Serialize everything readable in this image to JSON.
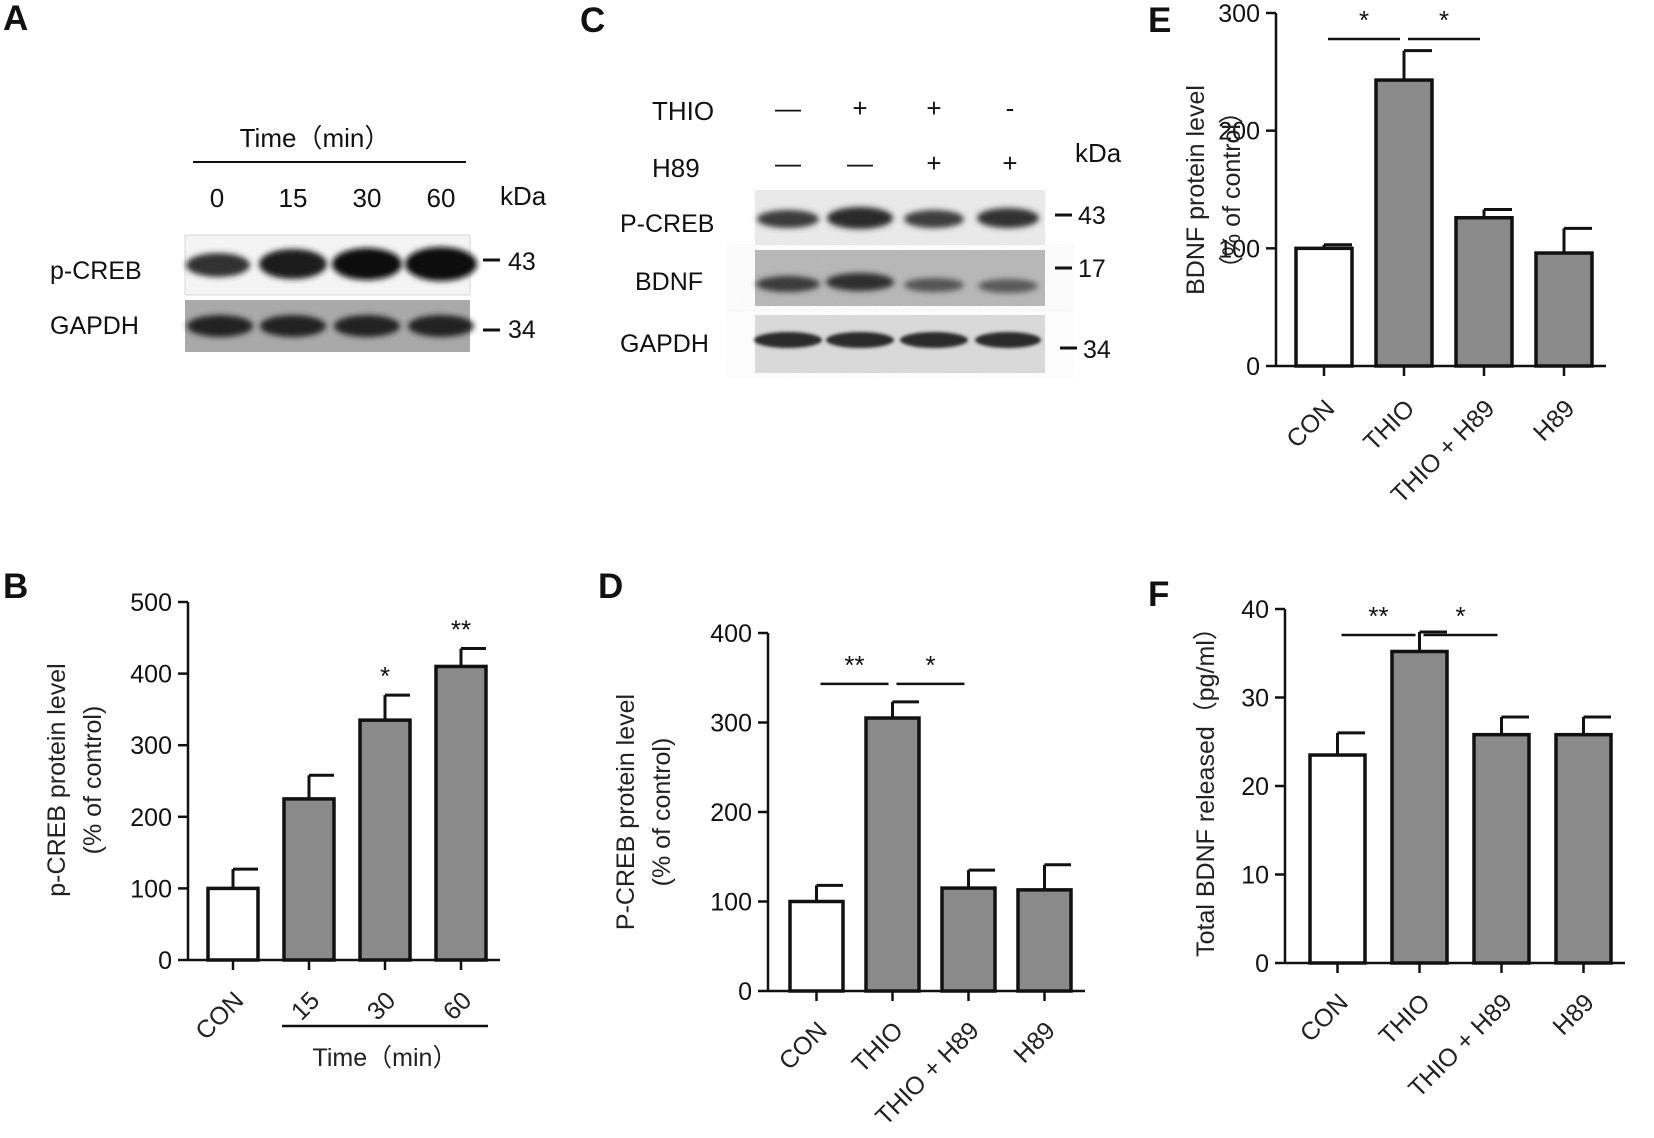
{
  "panels": {
    "A": {
      "letter": "A",
      "time_label": "Time（min）",
      "kda_label": "kDa",
      "columns": [
        "0",
        "15",
        "30",
        "60"
      ],
      "rows": [
        {
          "label": "p-CREB",
          "marker": "43"
        },
        {
          "label": "GAPDH",
          "marker": "34"
        }
      ]
    },
    "C": {
      "letter": "C",
      "kda_label": "kDa",
      "treatments": [
        {
          "label": "THIO",
          "signs": [
            "—",
            "+",
            "+",
            "-"
          ]
        },
        {
          "label": "H89",
          "signs": [
            "—",
            "—",
            "+",
            "+"
          ]
        }
      ],
      "rows": [
        {
          "label": "P-CREB",
          "marker": "43"
        },
        {
          "label": "BDNF",
          "marker": "17"
        },
        {
          "label": "GAPDH",
          "marker": "34"
        }
      ]
    }
  },
  "chart_data": [
    {
      "panel": "B",
      "type": "bar",
      "categories": [
        "CON",
        "15",
        "30",
        "60"
      ],
      "values": [
        100,
        225,
        335,
        410
      ],
      "errors": [
        27,
        33,
        35,
        25
      ],
      "significance": [
        "",
        "",
        "*",
        "**"
      ],
      "bar_colors": [
        "#ffffff",
        "#8a8a8a",
        "#8a8a8a",
        "#8a8a8a"
      ],
      "ylabel_lines": [
        "p-CREB protein level",
        "(% of control)"
      ],
      "xgroup_label": "Time（min）",
      "yticks": [
        0,
        100,
        200,
        300,
        400,
        500
      ],
      "ylim": [
        0,
        500
      ]
    },
    {
      "panel": "D",
      "type": "bar",
      "categories": [
        "CON",
        "THIO",
        "THIO + H89",
        "H89"
      ],
      "values": [
        100,
        305,
        115,
        113
      ],
      "errors": [
        18,
        18,
        20,
        28
      ],
      "bar_colors": [
        "#ffffff",
        "#8a8a8a",
        "#8a8a8a",
        "#8a8a8a"
      ],
      "ylabel_lines": [
        "P-CREB protein level",
        "(% of control)"
      ],
      "yticks": [
        0,
        100,
        200,
        300,
        400
      ],
      "ylim": [
        0,
        400
      ],
      "brackets": [
        {
          "from": 0,
          "to": 1,
          "label": "**"
        },
        {
          "from": 1,
          "to": 2,
          "label": "*"
        }
      ]
    },
    {
      "panel": "E",
      "type": "bar",
      "categories": [
        "CON",
        "THIO",
        "THIO + H89",
        "H89"
      ],
      "values": [
        100,
        243,
        126,
        96
      ],
      "errors": [
        3,
        25,
        7,
        21
      ],
      "bar_colors": [
        "#ffffff",
        "#8a8a8a",
        "#8a8a8a",
        "#8a8a8a"
      ],
      "ylabel_lines": [
        "BDNF protein level",
        "（% of control）"
      ],
      "yticks": [
        0,
        100,
        200,
        300
      ],
      "ylim": [
        0,
        300
      ],
      "brackets": [
        {
          "from": 0,
          "to": 1,
          "label": "*"
        },
        {
          "from": 1,
          "to": 2,
          "label": "*"
        }
      ]
    },
    {
      "panel": "F",
      "type": "bar",
      "categories": [
        "CON",
        "THIO",
        "THIO + H89",
        "H89"
      ],
      "values": [
        23.5,
        35.2,
        25.8,
        25.8
      ],
      "errors": [
        2.5,
        2.2,
        2.0,
        2.0
      ],
      "bar_colors": [
        "#ffffff",
        "#8a8a8a",
        "#8a8a8a",
        "#8a8a8a"
      ],
      "ylabel_lines": [
        "Total BDNF released（pg/ml）"
      ],
      "yticks": [
        0,
        10,
        20,
        30,
        40
      ],
      "ylim": [
        0,
        40
      ],
      "brackets": [
        {
          "from": 0,
          "to": 1,
          "label": "**"
        },
        {
          "from": 1,
          "to": 2,
          "label": "*"
        }
      ]
    }
  ]
}
